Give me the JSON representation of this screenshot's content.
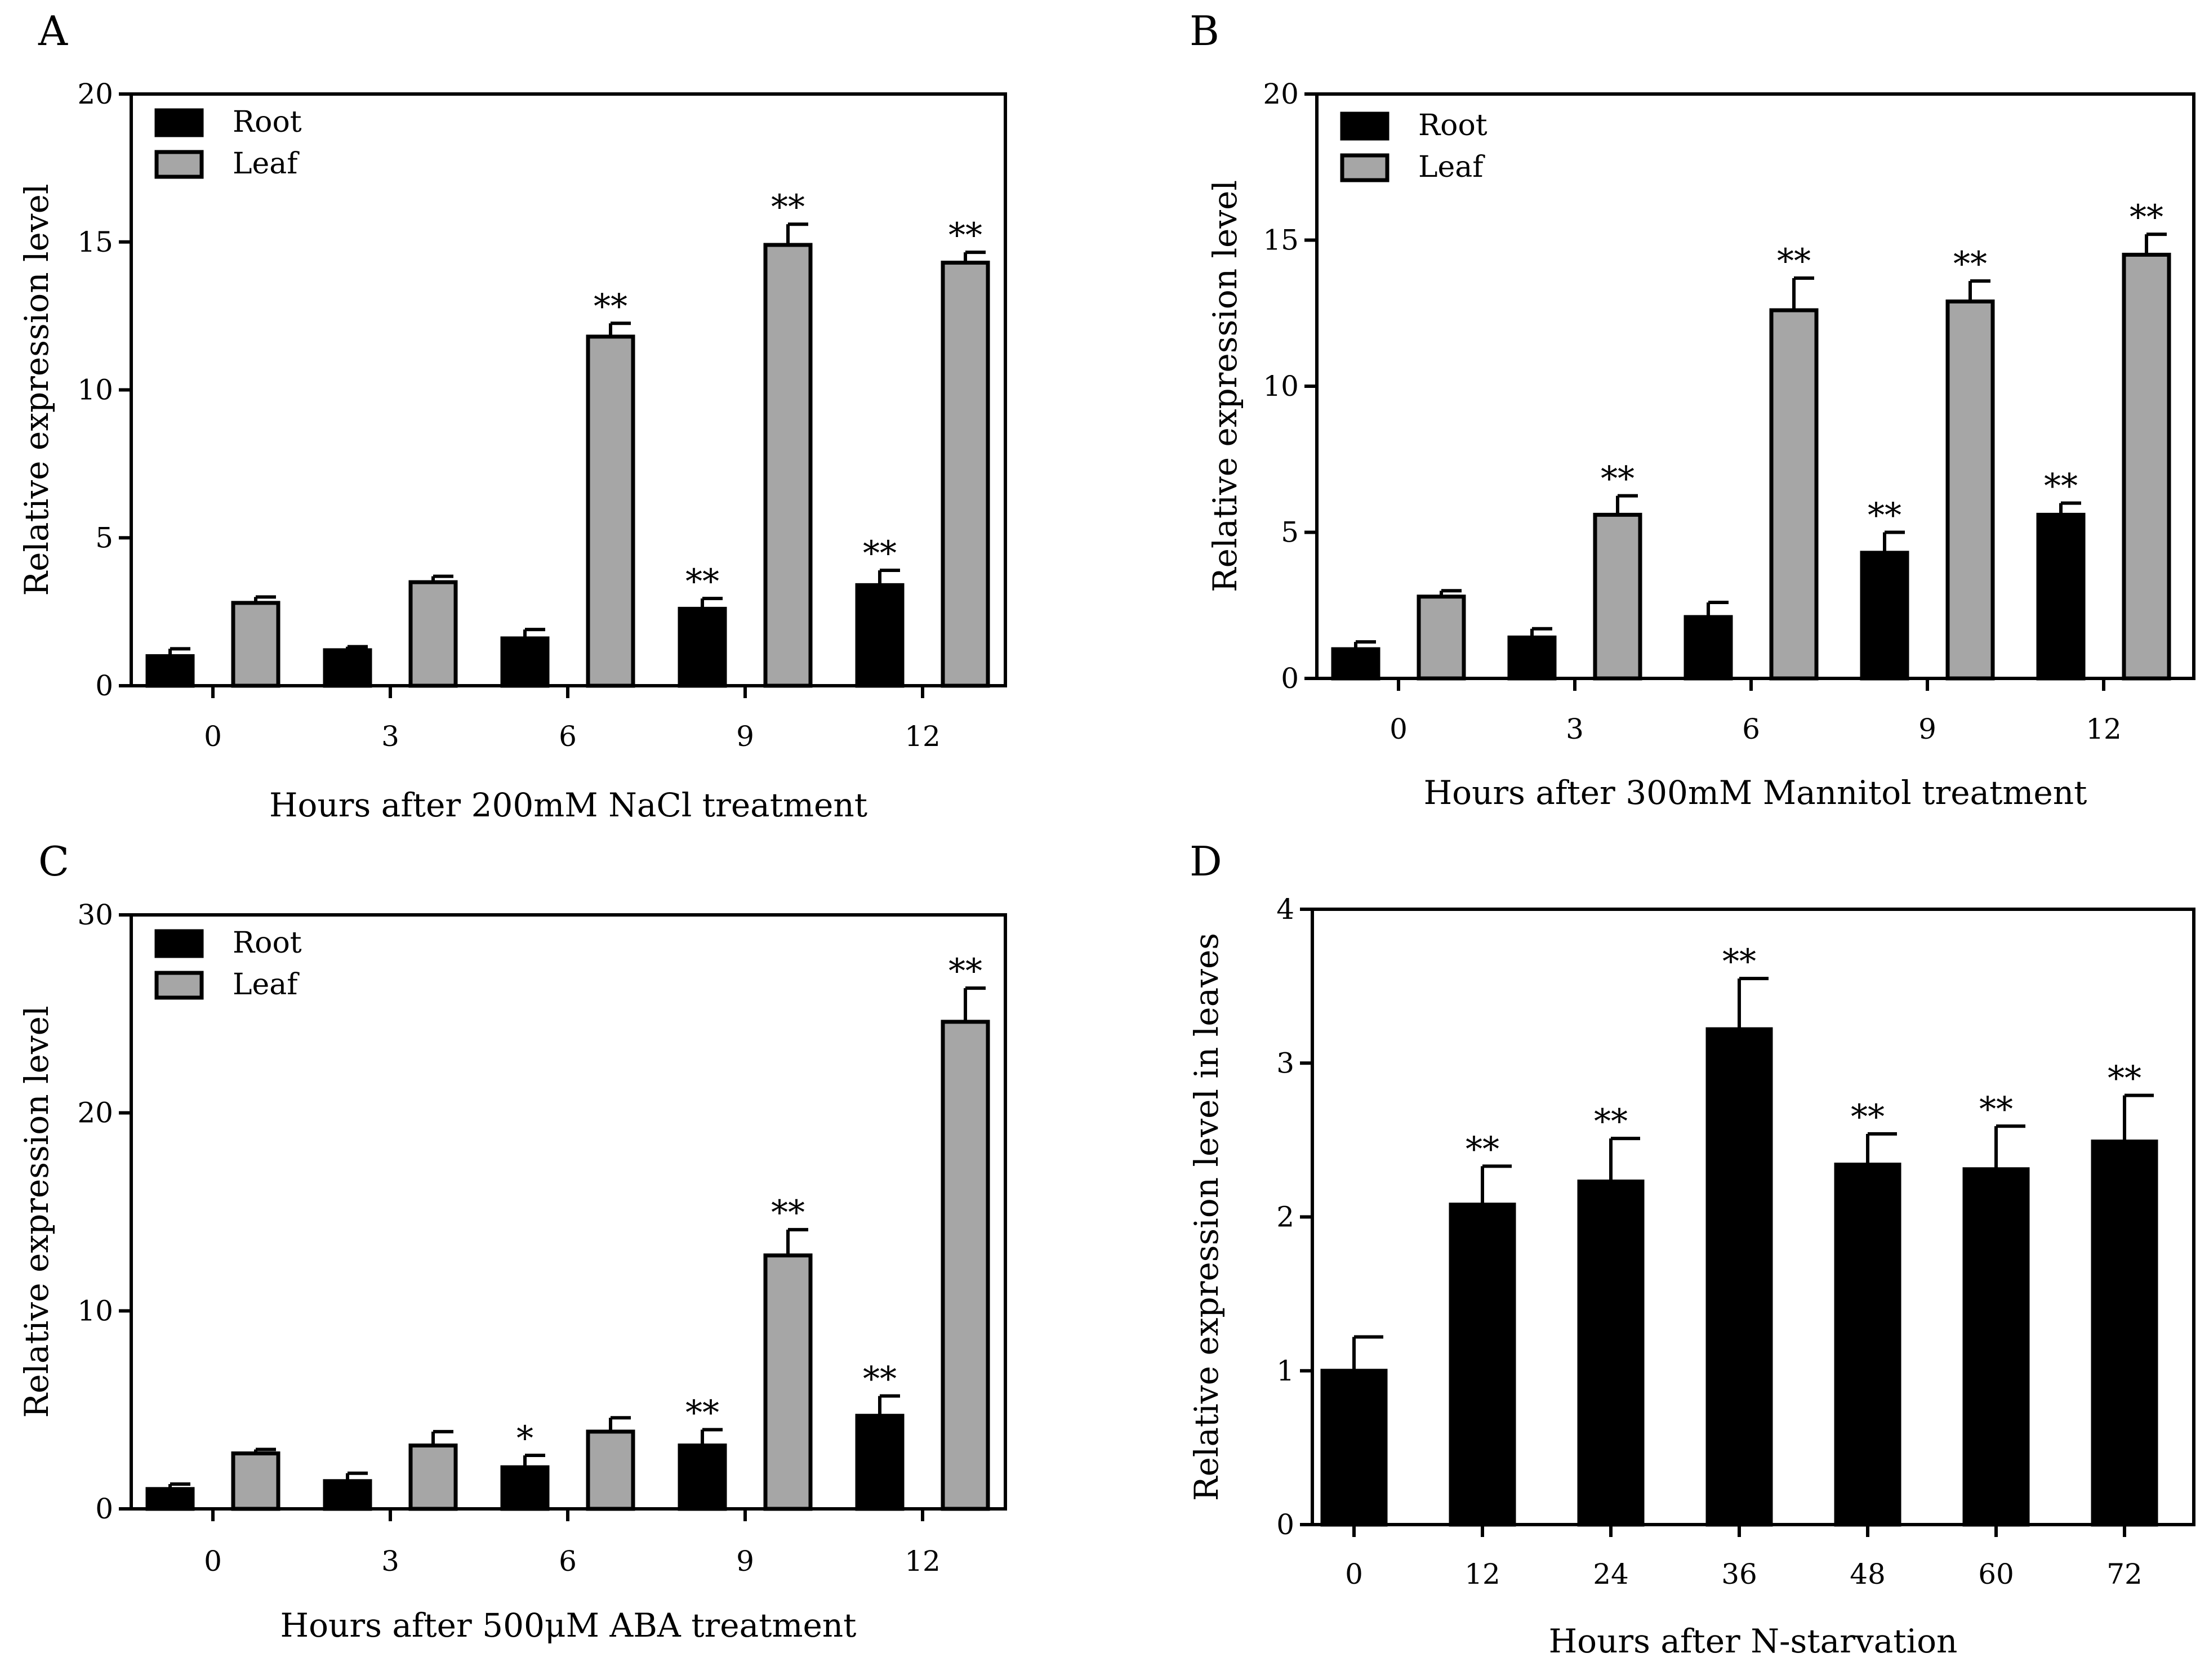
{
  "figure": {
    "colors": {
      "root": "#000000",
      "leaf": "#a6a6a6",
      "axis": "#000000",
      "background": "#ffffff"
    }
  },
  "chart_data": [
    {
      "panel": "A",
      "type": "bar",
      "title": "",
      "xlabel": "Hours after 200mM NaCl treatment",
      "ylabel": "Relative expression level",
      "ylim": [
        0,
        20
      ],
      "yticks": [
        0,
        5,
        10,
        15,
        20
      ],
      "categories": [
        "0",
        "3",
        "6",
        "9",
        "12"
      ],
      "legend": {
        "position": "top-left",
        "entries": [
          "Root",
          "Leaf"
        ]
      },
      "series": [
        {
          "name": "Root",
          "values": [
            1.0,
            1.2,
            1.6,
            2.6,
            3.4
          ],
          "errors": [
            0.25,
            0.12,
            0.3,
            0.35,
            0.5
          ],
          "labels": [
            "",
            "",
            "",
            "**",
            "**"
          ]
        },
        {
          "name": "Leaf",
          "values": [
            2.8,
            3.5,
            11.8,
            14.9,
            14.3
          ],
          "errors": [
            0.2,
            0.2,
            0.45,
            0.7,
            0.35
          ],
          "labels": [
            "",
            "",
            "**",
            "**",
            "**"
          ]
        }
      ]
    },
    {
      "panel": "B",
      "type": "bar",
      "title": "",
      "xlabel": "Hours after 300mM Mannitol treatment",
      "ylabel": "Relative expression level",
      "ylim": [
        0,
        20
      ],
      "yticks": [
        0,
        5,
        10,
        15,
        20
      ],
      "categories": [
        "0",
        "3",
        "6",
        "9",
        "12"
      ],
      "legend": {
        "position": "top-left",
        "entries": [
          "Root",
          "Leaf"
        ]
      },
      "series": [
        {
          "name": "Root",
          "values": [
            1.0,
            1.4,
            2.1,
            4.3,
            5.6
          ],
          "errors": [
            0.25,
            0.3,
            0.5,
            0.7,
            0.4
          ],
          "labels": [
            "",
            "",
            "",
            "**",
            "**"
          ]
        },
        {
          "name": "Leaf",
          "values": [
            2.8,
            5.6,
            12.6,
            12.9,
            14.5
          ],
          "errors": [
            0.2,
            0.65,
            1.1,
            0.7,
            0.7
          ],
          "labels": [
            "",
            "**",
            "**",
            "**",
            "**"
          ]
        }
      ]
    },
    {
      "panel": "C",
      "type": "bar",
      "title": "",
      "xlabel": "Hours after 500μM ABA treatment",
      "ylabel": "Relative expression level",
      "ylim": [
        0,
        30
      ],
      "yticks": [
        0,
        10,
        20,
        30
      ],
      "categories": [
        "0",
        "3",
        "6",
        "9",
        "12"
      ],
      "legend": {
        "position": "top-left",
        "entries": [
          "Root",
          "Leaf"
        ]
      },
      "series": [
        {
          "name": "Root",
          "values": [
            1.0,
            1.4,
            2.1,
            3.2,
            4.7
          ],
          "errors": [
            0.25,
            0.4,
            0.6,
            0.8,
            1.0
          ],
          "labels": [
            "",
            "",
            "*",
            "**",
            "**"
          ]
        },
        {
          "name": "Leaf",
          "values": [
            2.8,
            3.2,
            3.9,
            12.8,
            24.6
          ],
          "errors": [
            0.2,
            0.7,
            0.7,
            1.3,
            1.7
          ],
          "labels": [
            "",
            "",
            "",
            "**",
            "**"
          ]
        }
      ]
    },
    {
      "panel": "D",
      "type": "bar",
      "title": "",
      "xlabel": "Hours after N-starvation",
      "ylabel": "Relative expression level in leaves",
      "ylim": [
        0,
        4
      ],
      "yticks": [
        0,
        1,
        2,
        3,
        4
      ],
      "categories": [
        "0",
        "12",
        "24",
        "36",
        "48",
        "60",
        "72"
      ],
      "legend": null,
      "series": [
        {
          "name": "Leaf",
          "values": [
            1.0,
            2.08,
            2.23,
            3.22,
            2.34,
            2.31,
            2.49
          ],
          "errors": [
            0.22,
            0.25,
            0.28,
            0.33,
            0.2,
            0.28,
            0.3
          ],
          "labels": [
            "",
            "**",
            "**",
            "**",
            "**",
            "**",
            "**"
          ]
        }
      ]
    }
  ]
}
